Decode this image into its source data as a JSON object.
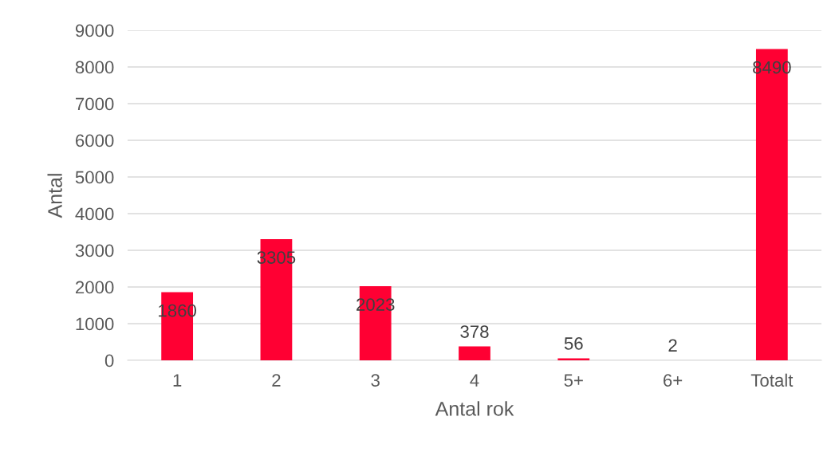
{
  "chart_data": {
    "type": "bar",
    "xlabel": "Antal rok",
    "ylabel": "Antal",
    "categories": [
      "1",
      "2",
      "3",
      "4",
      "5+",
      "6+",
      "Totalt"
    ],
    "values": [
      1860,
      3305,
      2023,
      378,
      56,
      2,
      8490
    ],
    "color": "#ff0033",
    "ylim": [
      0,
      9000
    ],
    "yticks": [
      0,
      1000,
      2000,
      3000,
      4000,
      5000,
      6000,
      7000,
      8000,
      9000
    ],
    "grid": "y",
    "data_labels": true
  }
}
